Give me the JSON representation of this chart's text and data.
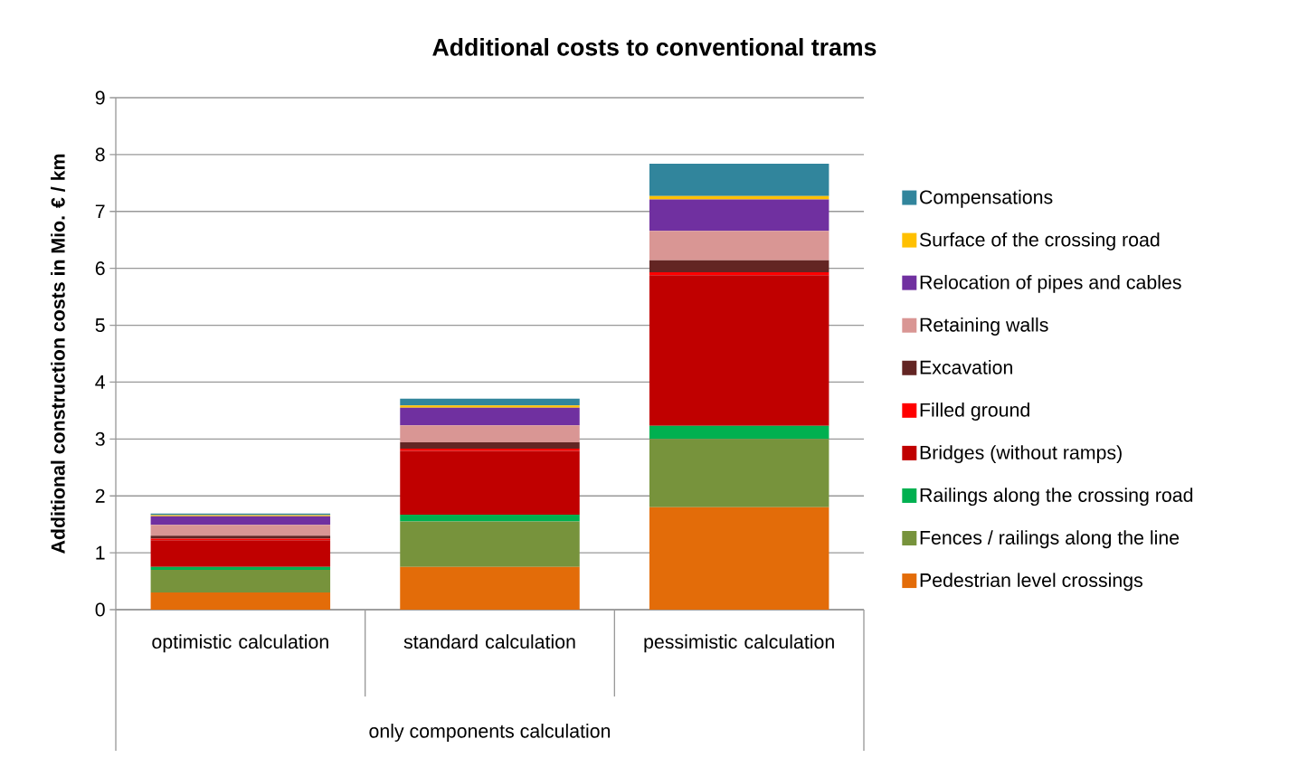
{
  "chart_data": {
    "type": "bar",
    "stacked": true,
    "title": "Additional costs to conventional trams",
    "ylabel": "Additional construction costs in Mio. € / km",
    "xlabel": "only components calculation",
    "categories": [
      "optimistic calculation",
      "standard calculation",
      "pessimistic calculation"
    ],
    "series": [
      {
        "name": "Pedestrian level crossings",
        "color": "#e36c09",
        "values": [
          0.3,
          0.75,
          1.8
        ]
      },
      {
        "name": "Fences / railings along the line",
        "color": "#77933c",
        "values": [
          0.4,
          0.8,
          1.2
        ]
      },
      {
        "name": "Railings along the crossing road",
        "color": "#00b050",
        "values": [
          0.05,
          0.12,
          0.23
        ]
      },
      {
        "name": "Bridges (without ramps)",
        "color": "#c00000",
        "values": [
          0.47,
          1.12,
          2.65
        ]
      },
      {
        "name": "Filled ground",
        "color": "#ff0000",
        "values": [
          0.03,
          0.04,
          0.05
        ]
      },
      {
        "name": "Excavation",
        "color": "#632523",
        "values": [
          0.05,
          0.11,
          0.21
        ]
      },
      {
        "name": "Retaining walls",
        "color": "#d99694",
        "values": [
          0.19,
          0.3,
          0.52
        ]
      },
      {
        "name": "Relocation of pipes and cables",
        "color": "#7030a0",
        "values": [
          0.15,
          0.31,
          0.55
        ]
      },
      {
        "name": "Surface of the crossing road",
        "color": "#ffc000",
        "values": [
          0.02,
          0.04,
          0.06
        ]
      },
      {
        "name": "Compensations",
        "color": "#31859c",
        "values": [
          0.03,
          0.12,
          0.57
        ]
      }
    ],
    "ylim": [
      0,
      9
    ],
    "yticks": [
      0,
      1,
      2,
      3,
      4,
      5,
      6,
      7,
      8,
      9
    ],
    "grid": "y",
    "legend": "right"
  }
}
